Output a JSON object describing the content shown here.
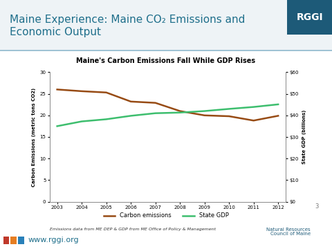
{
  "slide": {
    "header": [
      "Maine Experience: Maine CO₂ Emissions and",
      "Economic Output"
    ],
    "badge": "RGGI",
    "source": "Emissions data from ME DEP & GDP from ME Office of Policy & Management",
    "logo": [
      "Natural Resources",
      "Council of Maine"
    ],
    "page": "3",
    "url": "www.rggi.org"
  },
  "chart_data": {
    "type": "line",
    "title": "Maine's Carbon Emissions Fall While GDP Rises",
    "categories": [
      "2003",
      "2004",
      "2005",
      "2006",
      "2007",
      "2008",
      "2009",
      "2010",
      "2011",
      "2012"
    ],
    "y_label": "Carbon Emissions (metric tons CO2)",
    "y2_label": "State GDP (billions)",
    "ylim": [
      0,
      30
    ],
    "yticks": [
      0,
      5,
      10,
      15,
      20,
      25,
      30
    ],
    "y2lim": [
      0,
      60
    ],
    "y2ticks": [
      {
        "value": 0,
        "label": "$0"
      },
      {
        "value": 10,
        "label": "$10"
      },
      {
        "value": 20,
        "label": "$20"
      },
      {
        "value": 30,
        "label": "$30"
      },
      {
        "value": 40,
        "label": "$40"
      },
      {
        "value": 50,
        "label": "$50"
      },
      {
        "value": 60,
        "label": "$60"
      }
    ],
    "grid": false,
    "legend": "lower center",
    "series": [
      {
        "name": "Carbon emissions",
        "color": "#974b14",
        "values": [
          26.0,
          25.6,
          25.3,
          23.2,
          22.9,
          21.0,
          20.0,
          19.8,
          18.8,
          19.9
        ]
      },
      {
        "name": "State GDP",
        "color": "#3dbe6e",
        "axis": "y2",
        "values": [
          35.0,
          37.2,
          38.2,
          39.8,
          41.0,
          41.3,
          42.0,
          43.0,
          43.9,
          45.1
        ]
      }
    ]
  }
}
